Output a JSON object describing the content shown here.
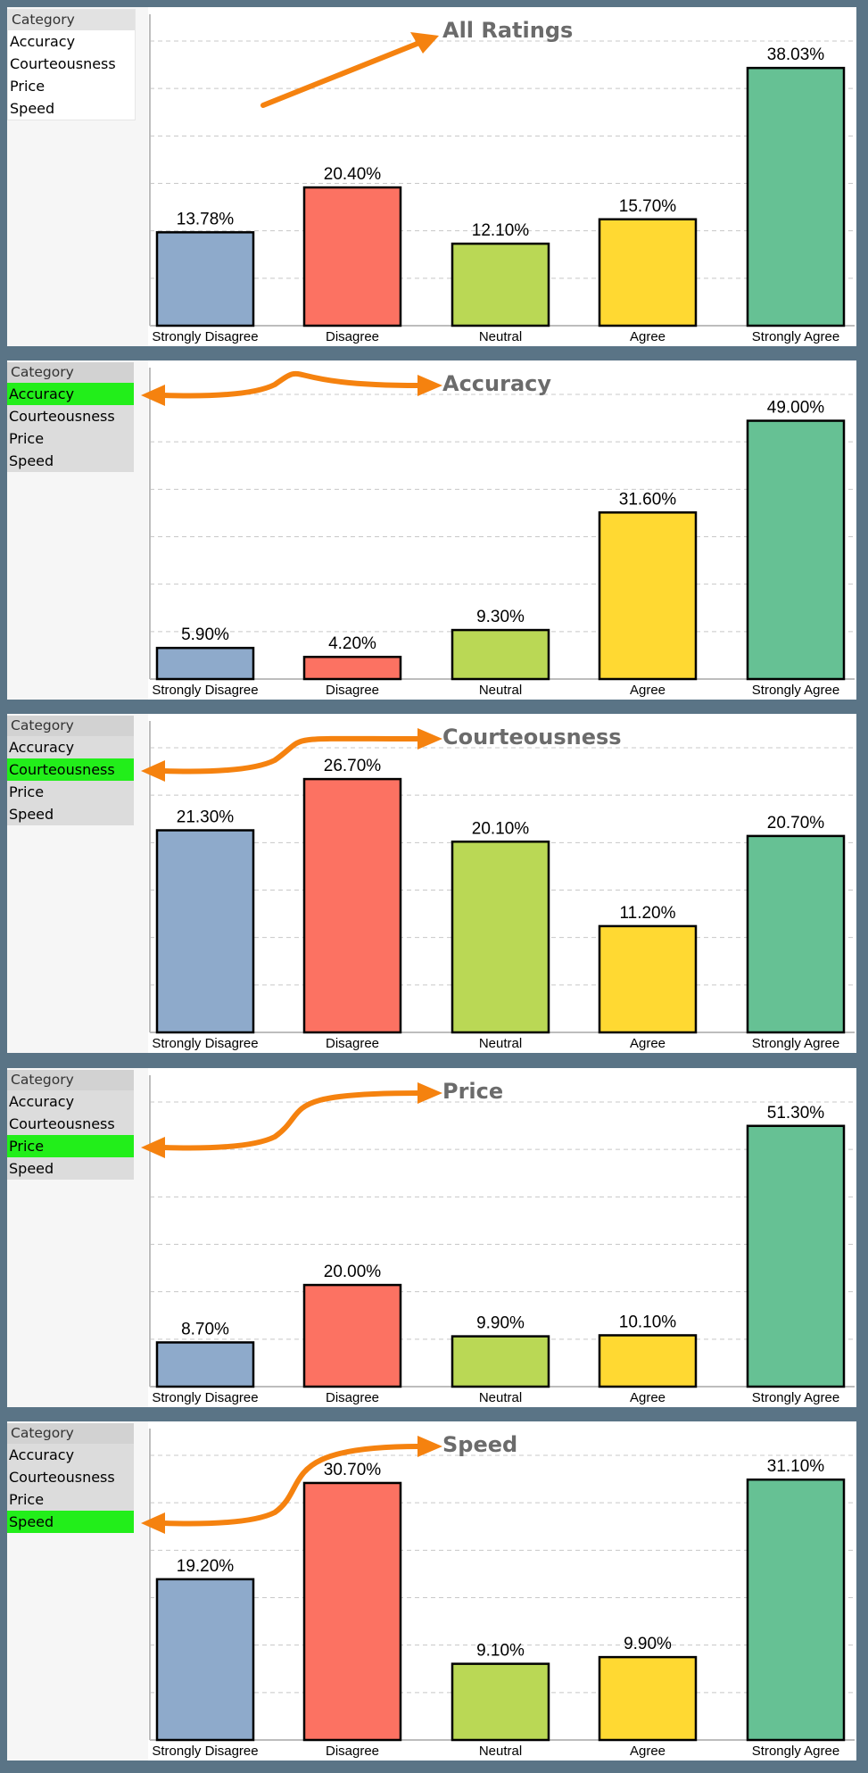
{
  "listbox_header": "Category",
  "categories_list": [
    "Accuracy",
    "Courteousness",
    "Price",
    "Speed"
  ],
  "colors": {
    "background": "#5a7486",
    "selected": "#22ee1a",
    "arrow": "#f5820f",
    "strongly_disagree": "#8eaacb",
    "disagree": "#fc7262",
    "neutral": "#bad855",
    "agree": "#ffd932",
    "strongly_agree": "#66c194"
  },
  "icons": {
    "pointer": "orange-arrow-icon"
  },
  "chart_data": [
    {
      "type": "bar",
      "title": "All Ratings",
      "selected": null,
      "categories": [
        "Strongly Disagree",
        "Disagree",
        "Neutral",
        "Agree",
        "Strongly Agree"
      ],
      "values": [
        13.78,
        20.4,
        12.1,
        15.7,
        38.03
      ],
      "labels": [
        "13.78%",
        "20.40%",
        "12.10%",
        "15.70%",
        "38.03%"
      ],
      "ylim": [
        0,
        42
      ],
      "grid": true
    },
    {
      "type": "bar",
      "title": "Accuracy",
      "selected": "Accuracy",
      "categories": [
        "Strongly Disagree",
        "Disagree",
        "Neutral",
        "Agree",
        "Strongly Agree"
      ],
      "values": [
        5.9,
        4.2,
        9.3,
        31.6,
        49.0
      ],
      "labels": [
        "5.90%",
        "4.20%",
        "9.30%",
        "31.60%",
        "49.00%"
      ],
      "ylim": [
        0,
        54
      ],
      "grid": true
    },
    {
      "type": "bar",
      "title": "Courteousness",
      "selected": "Courteousness",
      "categories": [
        "Strongly Disagree",
        "Disagree",
        "Neutral",
        "Agree",
        "Strongly Agree"
      ],
      "values": [
        21.3,
        26.7,
        20.1,
        11.2,
        20.7
      ],
      "labels": [
        "21.30%",
        "26.70%",
        "20.10%",
        "11.20%",
        "20.70%"
      ],
      "ylim": [
        0,
        30
      ],
      "grid": true
    },
    {
      "type": "bar",
      "title": "Price",
      "selected": "Price",
      "categories": [
        "Strongly Disagree",
        "Disagree",
        "Neutral",
        "Agree",
        "Strongly Agree"
      ],
      "values": [
        8.7,
        20.0,
        9.9,
        10.1,
        51.3
      ],
      "labels": [
        "8.70%",
        "20.00%",
        "9.90%",
        "10.10%",
        "51.30%"
      ],
      "ylim": [
        0,
        56
      ],
      "grid": true
    },
    {
      "type": "bar",
      "title": "Speed",
      "selected": "Speed",
      "categories": [
        "Strongly Disagree",
        "Disagree",
        "Neutral",
        "Agree",
        "Strongly Agree"
      ],
      "values": [
        19.2,
        30.7,
        9.1,
        9.9,
        31.1
      ],
      "labels": [
        "19.20%",
        "30.70%",
        "9.10%",
        "9.90%",
        "31.10%"
      ],
      "ylim": [
        0,
        34
      ],
      "grid": true
    }
  ]
}
